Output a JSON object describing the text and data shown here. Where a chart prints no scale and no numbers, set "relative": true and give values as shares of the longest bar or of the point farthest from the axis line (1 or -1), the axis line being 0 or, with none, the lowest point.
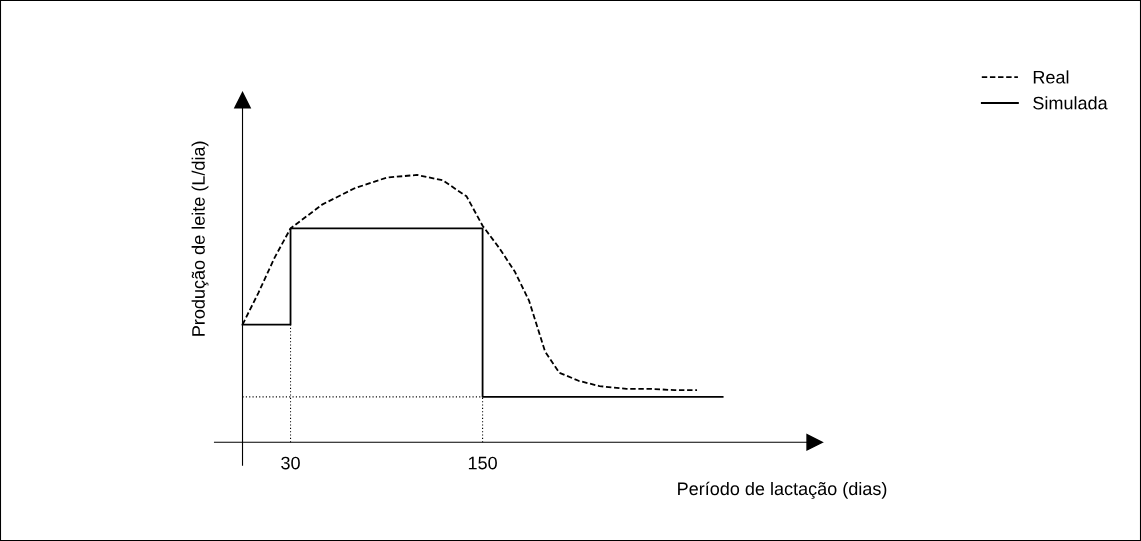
{
  "chart_data": {
    "type": "line",
    "relative": true,
    "xlabel": "Período de lactação (dias)",
    "ylabel": "Produção de leite (L/dia)",
    "xlim": [
      -17.5,
      357.5
    ],
    "xticks": [
      30,
      150
    ],
    "grid": false,
    "legend": "top right",
    "marker": "none",
    "series": [
      {
        "name": "Real",
        "color": "#000000",
        "line_style": "dashed",
        "x": [
          0,
          10,
          20,
          30,
          50,
          70,
          90,
          109,
          125,
          140,
          150,
          160,
          170,
          179,
          189,
          198,
          210,
          223,
          240,
          254,
          270,
          284
        ],
        "values": [
          0.44,
          0.56,
          0.69,
          0.8,
          0.89,
          0.95,
          0.99,
          1.0,
          0.98,
          0.92,
          0.81,
          0.73,
          0.64,
          0.53,
          0.34,
          0.26,
          0.23,
          0.21,
          0.2,
          0.2,
          0.195,
          0.195
        ]
      },
      {
        "name": "Simulada",
        "color": "#000000",
        "line_style": "solid",
        "type": "step",
        "x": [
          0,
          30,
          150,
          300
        ],
        "values": [
          0.44,
          0.8,
          0.17,
          0.17
        ]
      },
      {
        "color": "#000000",
        "line_style": "dotted",
        "x": [
          30,
          30
        ],
        "values": [
          0,
          0.44
        ]
      },
      {
        "color": "#000000",
        "line_style": "dotted",
        "x": [
          150,
          150
        ],
        "values": [
          0,
          0.17
        ]
      },
      {
        "color": "#000000",
        "line_style": "dotted",
        "x": [
          0,
          150
        ],
        "values": [
          0.17,
          0.17
        ]
      }
    ]
  }
}
